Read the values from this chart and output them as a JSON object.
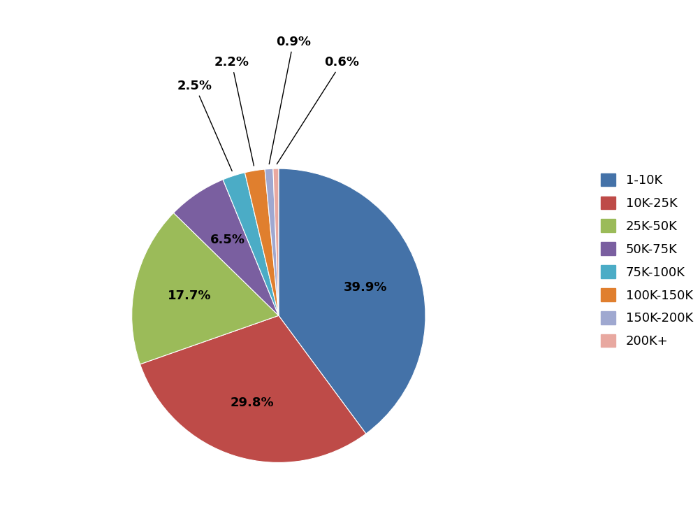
{
  "labels": [
    "1-10K",
    "10K-25K",
    "25K-50K",
    "50K-75K",
    "75K-100K",
    "100K-150K",
    "150K-200K",
    "200K+"
  ],
  "values": [
    39.9,
    29.8,
    17.7,
    6.5,
    2.5,
    2.2,
    0.9,
    0.6
  ],
  "colors": [
    "#4472a8",
    "#be4b48",
    "#9bbb59",
    "#7a5fa0",
    "#4bacc6",
    "#e07f2e",
    "#9fa8d0",
    "#e8a8a0"
  ],
  "label_fontsize": 13,
  "legend_fontsize": 13,
  "startangle": 90,
  "inside_indices": [
    0,
    1,
    2,
    3
  ],
  "outside_indices": [
    4,
    5,
    6,
    7
  ],
  "inside_r": 0.62,
  "background_color": "#ffffff"
}
